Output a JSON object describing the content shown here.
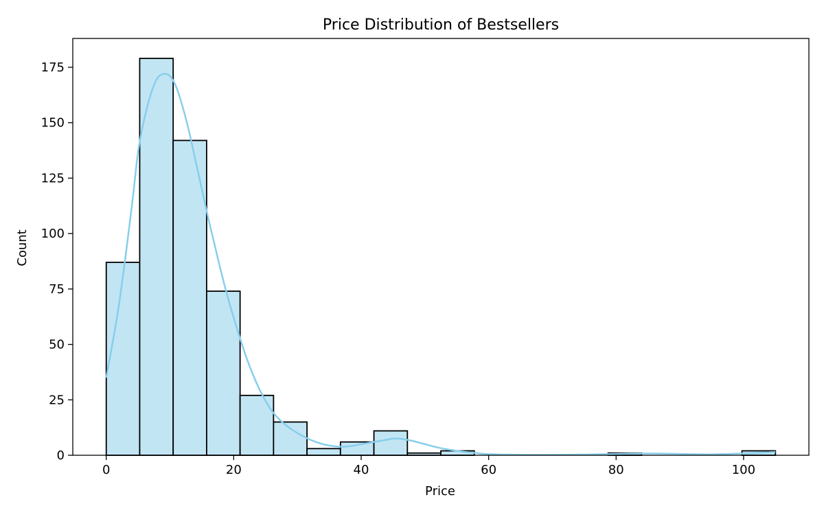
{
  "chart_data": {
    "type": "bar",
    "subtype": "histogram with kde",
    "title": "Price Distribution of Bestsellers",
    "xlabel": "Price",
    "ylabel": "Count",
    "xlim": [
      -5.25,
      110.25
    ],
    "ylim": [
      0,
      188
    ],
    "xticks": [
      0,
      20,
      40,
      60,
      80,
      100
    ],
    "yticks": [
      0,
      25,
      50,
      75,
      100,
      125,
      150,
      175
    ],
    "grid": false,
    "bar_color": "#c2e5f4",
    "edge_color": "#000000",
    "kde_color": "#87ceeb",
    "bins": [
      {
        "x0": 0,
        "x1": 5.25,
        "count": 87
      },
      {
        "x0": 5.25,
        "x1": 10.5,
        "count": 179
      },
      {
        "x0": 10.5,
        "x1": 15.75,
        "count": 142
      },
      {
        "x0": 15.75,
        "x1": 21,
        "count": 74
      },
      {
        "x0": 21,
        "x1": 26.25,
        "count": 27
      },
      {
        "x0": 26.25,
        "x1": 31.5,
        "count": 15
      },
      {
        "x0": 31.5,
        "x1": 36.75,
        "count": 3
      },
      {
        "x0": 36.75,
        "x1": 42,
        "count": 6
      },
      {
        "x0": 42,
        "x1": 47.25,
        "count": 11
      },
      {
        "x0": 47.25,
        "x1": 52.5,
        "count": 1
      },
      {
        "x0": 52.5,
        "x1": 57.75,
        "count": 2
      },
      {
        "x0": 57.75,
        "x1": 63,
        "count": 0
      },
      {
        "x0": 63,
        "x1": 68.25,
        "count": 0
      },
      {
        "x0": 68.25,
        "x1": 73.5,
        "count": 0
      },
      {
        "x0": 73.5,
        "x1": 78.75,
        "count": 0
      },
      {
        "x0": 78.75,
        "x1": 84,
        "count": 1
      },
      {
        "x0": 84,
        "x1": 89.25,
        "count": 0
      },
      {
        "x0": 89.25,
        "x1": 94.5,
        "count": 0
      },
      {
        "x0": 94.5,
        "x1": 99.75,
        "count": 0
      },
      {
        "x0": 99.75,
        "x1": 105,
        "count": 2
      }
    ],
    "kde": {
      "x": [
        0,
        2,
        4,
        5,
        6,
        7,
        8,
        9,
        10,
        11,
        12,
        13,
        14,
        15,
        16,
        17,
        18,
        19,
        20,
        22,
        24,
        26,
        28,
        30,
        32,
        34,
        36,
        38,
        40,
        42,
        44,
        45,
        46,
        48,
        50,
        52,
        55,
        58,
        60,
        65,
        70,
        75,
        80,
        85,
        90,
        95,
        100,
        105
      ],
      "y": [
        35,
        68,
        112,
        137,
        152,
        163,
        170,
        172,
        171,
        166,
        157,
        146,
        133,
        120,
        107,
        95,
        83,
        72,
        62,
        44,
        30,
        20,
        14,
        10,
        7,
        5,
        4,
        4,
        5,
        6,
        7,
        7.5,
        7.5,
        6.5,
        5,
        3.5,
        2,
        1,
        0.5,
        0.2,
        0.2,
        0.3,
        0.6,
        0.8,
        0.6,
        0.4,
        0.8,
        1.5
      ]
    }
  }
}
